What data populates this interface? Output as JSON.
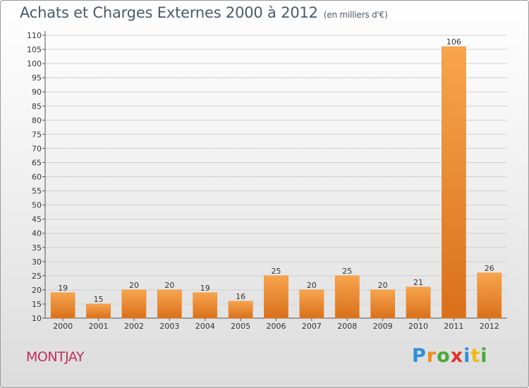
{
  "chart_data": {
    "type": "bar",
    "title": "Achats et Charges Externes 2000 à 2012",
    "subtitle": "(en milliers d'€)",
    "categories": [
      "2000",
      "2001",
      "2002",
      "2003",
      "2004",
      "2005",
      "2006",
      "2007",
      "2008",
      "2009",
      "2010",
      "2011",
      "2012"
    ],
    "values": [
      19,
      15,
      20,
      20,
      19,
      16,
      25,
      20,
      25,
      20,
      21,
      106,
      26
    ],
    "ylim": [
      10,
      110
    ],
    "yticks": [
      10,
      15,
      20,
      25,
      30,
      35,
      40,
      45,
      50,
      55,
      60,
      65,
      70,
      75,
      80,
      85,
      90,
      95,
      100,
      105,
      110
    ],
    "grid": true,
    "bar_color": "#f0922a"
  },
  "commune": "MONTJAY",
  "logo": {
    "letters": [
      "P",
      "r",
      "o",
      "x",
      "i",
      "t",
      "i"
    ]
  }
}
